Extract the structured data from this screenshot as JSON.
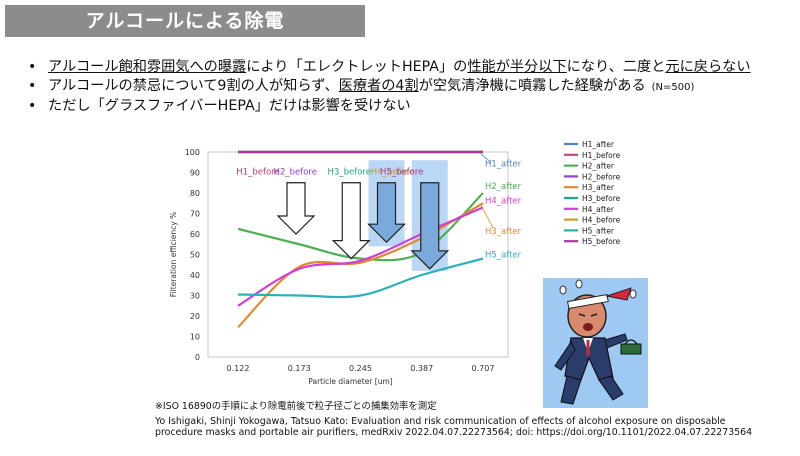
{
  "slide": {
    "title": "アルコールによる除電",
    "bullets": [
      {
        "parts": [
          {
            "text": "アルコール飽和雰囲気への曝露",
            "underline": true
          },
          {
            "text": "により「エレクトレットHEPA」の",
            "underline": false
          },
          {
            "text": "性能が半分以下",
            "underline": true
          },
          {
            "text": "になり、二度と",
            "underline": false
          },
          {
            "text": "元に戻らない",
            "underline": true
          }
        ]
      },
      {
        "parts": [
          {
            "text": "アルコールの禁忌について9割の人が知らず、",
            "underline": false
          },
          {
            "text": "医療者の4割",
            "underline": true
          },
          {
            "text": "が空気清浄機に噴霧した経験がある",
            "underline": false
          }
        ],
        "note": "(N=500)"
      },
      {
        "parts": [
          {
            "text": "ただし「グラスファイバーHEPA」だけは影響を受けない",
            "underline": false
          }
        ]
      }
    ],
    "footnote": "※ISO 16890の手順により除電前後で粒子径ごとの捕集効率を測定",
    "citation_lines": [
      "Yo Ishigaki, Shinji Yokogawa, Tatsuo Kato: Evaluation and risk communication of effects of alcohol exposure on disposable",
      "procedure masks and portable air purifiers, medRxiv 2022.04.07.22273564; doi: https://doi.org/10.1101/2022.04.07.22273564"
    ],
    "mascot_icon": "worried-drunk-salaryman-illustration"
  },
  "chart_data": {
    "type": "line",
    "xlabel": "Particle diameter [um]",
    "ylabel": "Filteration efficiency %",
    "x": [
      "0.122",
      "0.173",
      "0.245",
      "0.387",
      "0.707"
    ],
    "ylim": [
      0,
      100
    ],
    "yticks": [
      0,
      10,
      20,
      30,
      40,
      50,
      60,
      70,
      80,
      90,
      100
    ],
    "grid": false,
    "legend_position": "right",
    "series": [
      {
        "name": "H1_after",
        "color": "#4a86c8",
        "values": [
          100,
          100,
          100,
          100,
          100
        ]
      },
      {
        "name": "H1_before",
        "color": "#c04a7a",
        "values": [
          100,
          100,
          100,
          100,
          100
        ]
      },
      {
        "name": "H2_after",
        "color": "#4caf50",
        "values": [
          62.5,
          55,
          48,
          51,
          80
        ]
      },
      {
        "name": "H2_before",
        "color": "#9a3ec8",
        "values": [
          100,
          100,
          100,
          100,
          100
        ]
      },
      {
        "name": "H3_after",
        "color": "#e08a2e",
        "values": [
          14.5,
          44,
          46,
          58,
          75
        ]
      },
      {
        "name": "H3_before",
        "color": "#23a08c",
        "values": [
          100,
          100,
          100,
          100,
          100
        ]
      },
      {
        "name": "H4_after",
        "color": "#d23ed6",
        "values": [
          25,
          43,
          47,
          60,
          73
        ]
      },
      {
        "name": "H4_before",
        "color": "#c8a028",
        "values": [
          100,
          100,
          100,
          100,
          100
        ]
      },
      {
        "name": "H5_after",
        "color": "#2ab0b8",
        "values": [
          30.5,
          30,
          30,
          40,
          48
        ]
      },
      {
        "name": "H5_before",
        "color": "#a8389c",
        "values": [
          100,
          100,
          100,
          100,
          100
        ]
      }
    ],
    "annotations": [
      {
        "text": "H1_before",
        "color": "#c0396b"
      },
      {
        "text": "H2_before",
        "color": "#9a3ec8"
      },
      {
        "text": "H3_before",
        "color": "#23a08c"
      },
      {
        "text": "H4_before",
        "color": "#c8a028"
      },
      {
        "text": "H5_before",
        "color": "#a8389c"
      }
    ],
    "end_labels": [
      {
        "text": "H1_after",
        "color": "#4a86c8",
        "y": 93
      },
      {
        "text": "H2_after",
        "color": "#4caf50",
        "y": 82
      },
      {
        "text": "H4_after",
        "color": "#d23ed6",
        "y": 75
      },
      {
        "text": "H3_after",
        "color": "#e08a2e",
        "y": 60
      },
      {
        "text": "H5_after",
        "color": "#2ab0b8",
        "y": 48.5
      }
    ]
  }
}
